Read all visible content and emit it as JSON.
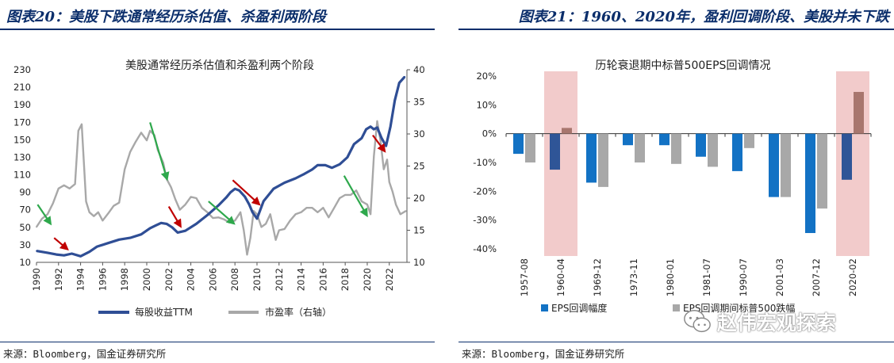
{
  "header_left": "图表20：美股下跌通常经历杀估值、杀盈利两阶段",
  "header_right": "图表21：1960、2020年，盈利回调阶段、美股并未下跌",
  "footer_left": "来源：Bloomberg，国金证券研究所",
  "footer_right": "来源：Bloomberg，国金证券研究所",
  "watermark": "赵伟宏观探索",
  "chart_data": [
    {
      "type": "line",
      "title": "美股通常经历杀估值和杀盈利两个阶段",
      "x_ticks": [
        "1990",
        "1992",
        "1994",
        "1996",
        "1998",
        "2000",
        "2002",
        "2004",
        "2006",
        "2008",
        "2010",
        "2012",
        "2014",
        "2016",
        "2018",
        "2020",
        "2022"
      ],
      "xlim": [
        1990,
        2023.6
      ],
      "y_left_ticks": [
        "10",
        "30",
        "50",
        "70",
        "90",
        "110",
        "130",
        "150",
        "170",
        "190",
        "210",
        "230"
      ],
      "y_left_lim": [
        10,
        230
      ],
      "y_right_ticks": [
        "10",
        "15",
        "20",
        "25",
        "30",
        "35",
        "40"
      ],
      "y_right_lim": [
        10,
        40
      ],
      "legend": [
        "每股收益TTM",
        "市盈率（右轴）"
      ],
      "legend_position": "bottom",
      "colors": {
        "eps": "#2f4e95",
        "pe": "#a8a8a8",
        "red_arrow": "#c00000",
        "green_arrow": "#2ea84c"
      },
      "series": [
        {
          "name": "每股收益TTM",
          "axis": "left",
          "x": [
            1990,
            1991,
            1991.8,
            1992.5,
            1993.2,
            1994,
            1994.8,
            1995.5,
            1996.5,
            1997.5,
            1998.5,
            1999.5,
            2000.3,
            2000.8,
            2001.3,
            2001.8,
            2002.3,
            2002.8,
            2003.5,
            2004.5,
            2005.5,
            2006.5,
            2007.2,
            2007.6,
            2008,
            2008.4,
            2008.9,
            2009.3,
            2009.6,
            2010,
            2010.6,
            2011.5,
            2012.5,
            2013.5,
            2014.3,
            2015,
            2015.5,
            2016.2,
            2016.8,
            2017.5,
            2018.2,
            2018.8,
            2019.5,
            2019.9,
            2020.3,
            2020.6,
            2020.9,
            2021.3,
            2021.7,
            2022.1,
            2022.5,
            2022.9,
            2023.4
          ],
          "values": [
            23,
            21,
            19,
            18,
            20,
            17,
            22,
            28,
            32,
            36,
            38,
            42,
            49,
            52,
            55,
            54,
            50,
            44,
            46,
            54,
            64,
            75,
            84,
            90,
            94,
            92,
            85,
            76,
            67,
            60,
            80,
            94,
            101,
            106,
            111,
            116,
            121,
            121,
            118,
            122,
            130,
            145,
            152,
            162,
            165,
            162,
            164,
            152,
            143,
            165,
            195,
            215,
            222
          ]
        },
        {
          "name": "市盈率（右轴）",
          "axis": "right",
          "x": [
            1990,
            1990.5,
            1991,
            1991.5,
            1992,
            1992.5,
            1993,
            1993.5,
            1993.8,
            1994.1,
            1994.5,
            1994.8,
            1995.2,
            1995.6,
            1996,
            1996.5,
            1997,
            1997.5,
            1998,
            1998.5,
            1999,
            1999.5,
            2000,
            2000.3,
            2000.7,
            2001,
            2001.5,
            2001.8,
            2002.2,
            2002.6,
            2003,
            2003.5,
            2004,
            2004.5,
            2005,
            2005.5,
            2006,
            2006.5,
            2007,
            2007.5,
            2008,
            2008.5,
            2008.8,
            2009.1,
            2009.4,
            2009.7,
            2010,
            2010.4,
            2010.8,
            2011.2,
            2011.7,
            2012,
            2012.5,
            2013,
            2013.5,
            2014,
            2014.5,
            2015,
            2015.5,
            2016,
            2016.5,
            2017,
            2017.5,
            2018,
            2018.5,
            2019,
            2019.5,
            2020,
            2020.3,
            2020.6,
            2020.9,
            2021.2,
            2021.5,
            2021.8,
            2022,
            2022.3,
            2022.6,
            2023,
            2023.5
          ],
          "values": [
            15.5,
            16.8,
            17.5,
            19.2,
            21.5,
            22,
            21.5,
            22.2,
            30.5,
            31.5,
            19.5,
            17.8,
            17.2,
            17.8,
            16.5,
            17.6,
            18.8,
            19.3,
            24.5,
            27.2,
            28.8,
            30.2,
            29,
            30.5,
            29.8,
            27.5,
            25.5,
            23,
            21.7,
            19.8,
            18.2,
            19,
            20.2,
            20,
            18.5,
            17.8,
            16.9,
            17,
            16.7,
            16.2,
            16.5,
            17.8,
            15,
            11.2,
            13.8,
            18,
            17.5,
            15.5,
            16,
            17.5,
            13.5,
            15,
            15.2,
            16.5,
            17.5,
            17.8,
            18.5,
            18.5,
            17.8,
            18.5,
            17,
            18.5,
            20,
            20.5,
            20.5,
            21.2,
            19.5,
            19,
            17.5,
            26.5,
            32,
            29,
            24.5,
            26,
            22.5,
            21,
            19,
            17.5,
            18
          ]
        }
      ],
      "annotations": [
        {
          "type": "arrow",
          "color": "red",
          "from": [
            1991.6,
            13.8
          ],
          "to": [
            1992.7,
            12.2
          ],
          "axis": "right"
        },
        {
          "type": "arrow",
          "color": "green",
          "from": [
            1990.1,
            19
          ],
          "to": [
            1991.2,
            16.2
          ],
          "axis": "right"
        },
        {
          "type": "arrow",
          "color": "green",
          "from": [
            2000.3,
            31.8
          ],
          "to": [
            2001.8,
            23.2
          ],
          "axis": "right"
        },
        {
          "type": "arrow",
          "color": "red",
          "from": [
            2002,
            18.7
          ],
          "to": [
            2003,
            15.8
          ],
          "axis": "right"
        },
        {
          "type": "arrow",
          "color": "green",
          "from": [
            2005.6,
            19.5
          ],
          "to": [
            2007.8,
            16.2
          ],
          "axis": "right"
        },
        {
          "type": "arrow",
          "color": "red",
          "from": [
            2007.8,
            22.8
          ],
          "to": [
            2010.1,
            19.2
          ],
          "axis": "right"
        },
        {
          "type": "arrow",
          "color": "green",
          "from": [
            2017.9,
            23.5
          ],
          "to": [
            2019.9,
            17.5
          ],
          "axis": "right"
        },
        {
          "type": "arrow",
          "color": "red",
          "from": [
            2020.5,
            29.8
          ],
          "to": [
            2021.5,
            27.5
          ],
          "axis": "right"
        }
      ]
    },
    {
      "type": "bar",
      "title": "历轮衰退期中标普500EPS回调情况",
      "categories": [
        "1957-08",
        "1960-04",
        "1969-12",
        "1973-11",
        "1980-01",
        "1981-07",
        "1990-07",
        "2001-03",
        "2007-12",
        "2020-02"
      ],
      "ylim": [
        -0.4,
        0.2
      ],
      "y_ticks": [
        "20%",
        "10%",
        "0%",
        "-10%",
        "-20%",
        "-30%",
        "-40%"
      ],
      "y_tick_values": [
        0.2,
        0.1,
        0,
        -0.1,
        -0.2,
        -0.3,
        -0.4
      ],
      "legend": [
        "EPS回调幅度",
        "EPS回调期间标普500跌幅"
      ],
      "legend_position": "bottom",
      "highlighted_categories": [
        "1960-04",
        "2020-02"
      ],
      "colors": {
        "eps": "#1372c4",
        "sp500": "#a8a8a8",
        "highlight_bg": "#f2cbcb",
        "eps_highlight": "#2f5597",
        "sp500_highlight": "#a8766e"
      },
      "series": [
        {
          "name": "EPS回调幅度",
          "values": [
            -0.07,
            -0.125,
            -0.17,
            -0.04,
            -0.04,
            -0.08,
            -0.13,
            -0.22,
            -0.345,
            -0.16
          ]
        },
        {
          "name": "EPS回调期间标普500跌幅",
          "values": [
            -0.1,
            0.02,
            -0.185,
            -0.1,
            -0.105,
            -0.115,
            -0.05,
            -0.22,
            -0.26,
            0.145
          ]
        }
      ]
    }
  ]
}
